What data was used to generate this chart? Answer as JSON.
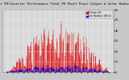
{
  "title": "Solar PV/Inverter Performance Total PV Panel Power Output & Solar Radiation",
  "bg_color": "#c8c8c8",
  "plot_bg_color": "#d8d8d8",
  "grid_color": "#ffffff",
  "red_color": "#dd0000",
  "blue_color": "#0000dd",
  "text_color": "#000000",
  "n_points": 300,
  "y_max": 6000,
  "y_ticks": [
    0,
    1000,
    2000,
    3000,
    4000,
    5000,
    6000
  ],
  "y_tick_labels": [
    "0",
    "1k",
    "2k",
    "3k",
    "4k",
    "5k",
    "6k"
  ],
  "legend_pv": "PV Power (W)",
  "legend_solar": "Solar Radiation (W/m2)"
}
